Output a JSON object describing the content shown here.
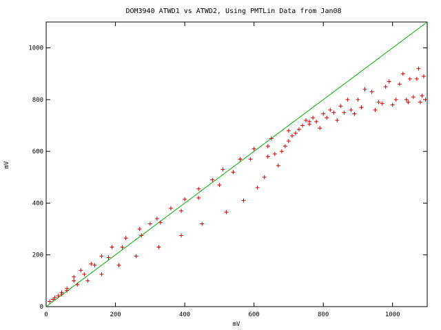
{
  "chart_data": {
    "type": "scatter",
    "title": "DOM3940 ATWD1 vs ATWD2, Using PMTLin Data from Jan08",
    "xlabel": "mV",
    "ylabel": "mV",
    "xlim": [
      0,
      1100
    ],
    "ylim": [
      0,
      1100
    ],
    "xticks": [
      0,
      200,
      400,
      600,
      800,
      1000
    ],
    "yticks": [
      0,
      200,
      400,
      600,
      800,
      1000
    ],
    "grid": false,
    "colors": {
      "points": "#cc0000",
      "line": "#00b000",
      "axes": "#000000"
    },
    "line": {
      "x": [
        0,
        1100
      ],
      "y": [
        0,
        1100
      ]
    },
    "points": [
      [
        10,
        20
      ],
      [
        20,
        28
      ],
      [
        25,
        35
      ],
      [
        35,
        42
      ],
      [
        45,
        55
      ],
      [
        45,
        48
      ],
      [
        60,
        70
      ],
      [
        60,
        62
      ],
      [
        80,
        115
      ],
      [
        80,
        100
      ],
      [
        90,
        85
      ],
      [
        100,
        140
      ],
      [
        110,
        125
      ],
      [
        120,
        100
      ],
      [
        130,
        165
      ],
      [
        140,
        160
      ],
      [
        160,
        195
      ],
      [
        160,
        125
      ],
      [
        180,
        190
      ],
      [
        190,
        230
      ],
      [
        210,
        160
      ],
      [
        220,
        230
      ],
      [
        230,
        265
      ],
      [
        260,
        195
      ],
      [
        270,
        300
      ],
      [
        275,
        275
      ],
      [
        300,
        320
      ],
      [
        320,
        340
      ],
      [
        330,
        325
      ],
      [
        325,
        230
      ],
      [
        360,
        380
      ],
      [
        390,
        370
      ],
      [
        390,
        275
      ],
      [
        400,
        415
      ],
      [
        440,
        455
      ],
      [
        440,
        420
      ],
      [
        450,
        320
      ],
      [
        480,
        490
      ],
      [
        500,
        470
      ],
      [
        510,
        530
      ],
      [
        520,
        365
      ],
      [
        540,
        520
      ],
      [
        560,
        570
      ],
      [
        570,
        410
      ],
      [
        590,
        570
      ],
      [
        600,
        610
      ],
      [
        610,
        460
      ],
      [
        630,
        500
      ],
      [
        640,
        580
      ],
      [
        640,
        620
      ],
      [
        650,
        650
      ],
      [
        660,
        590
      ],
      [
        670,
        545
      ],
      [
        680,
        600
      ],
      [
        690,
        620
      ],
      [
        700,
        640
      ],
      [
        700,
        680
      ],
      [
        710,
        660
      ],
      [
        720,
        670
      ],
      [
        730,
        685
      ],
      [
        740,
        700
      ],
      [
        750,
        720
      ],
      [
        760,
        715
      ],
      [
        760,
        705
      ],
      [
        770,
        730
      ],
      [
        780,
        715
      ],
      [
        790,
        690
      ],
      [
        800,
        745
      ],
      [
        810,
        730
      ],
      [
        820,
        760
      ],
      [
        830,
        750
      ],
      [
        840,
        720
      ],
      [
        850,
        775
      ],
      [
        860,
        750
      ],
      [
        870,
        800
      ],
      [
        880,
        760
      ],
      [
        890,
        745
      ],
      [
        900,
        800
      ],
      [
        910,
        770
      ],
      [
        920,
        840
      ],
      [
        940,
        830
      ],
      [
        950,
        760
      ],
      [
        960,
        790
      ],
      [
        970,
        785
      ],
      [
        980,
        850
      ],
      [
        990,
        870
      ],
      [
        1000,
        780
      ],
      [
        1010,
        800
      ],
      [
        1020,
        860
      ],
      [
        1030,
        900
      ],
      [
        1040,
        800
      ],
      [
        1045,
        790
      ],
      [
        1050,
        880
      ],
      [
        1060,
        810
      ],
      [
        1070,
        880
      ],
      [
        1075,
        920
      ],
      [
        1080,
        790
      ],
      [
        1085,
        815
      ],
      [
        1090,
        890
      ],
      [
        1095,
        800
      ]
    ]
  }
}
